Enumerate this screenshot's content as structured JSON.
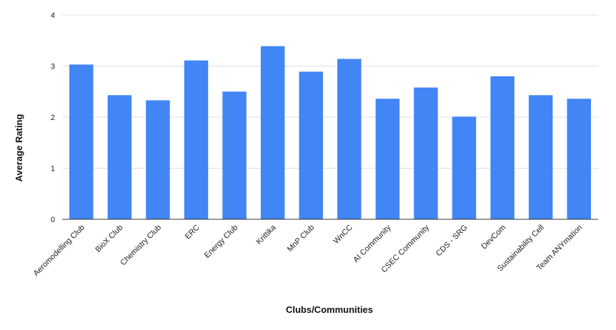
{
  "chart_data": {
    "type": "bar",
    "title": "",
    "xlabel": "Clubs/Communities",
    "ylabel": "Average Rating",
    "ylim": [
      0,
      4
    ],
    "yticks": [
      0,
      1,
      2,
      3,
      4
    ],
    "grid": true,
    "legend": "none",
    "bar_color": "#4285f4",
    "categories": [
      "Aeromodelling Club",
      "BioX Club",
      "Chemistry Club",
      "ERC",
      "Energy Club",
      "Krittika",
      "MnP Club",
      "WnCC",
      "AI Community",
      "CSEC Community",
      "CDS - SRG",
      "DevCom",
      "Sustainability Cell",
      "Team ANYmation"
    ],
    "values": [
      3.03,
      2.43,
      2.33,
      3.11,
      2.5,
      3.39,
      2.89,
      3.14,
      2.36,
      2.58,
      2.01,
      2.8,
      2.43,
      2.36
    ]
  }
}
